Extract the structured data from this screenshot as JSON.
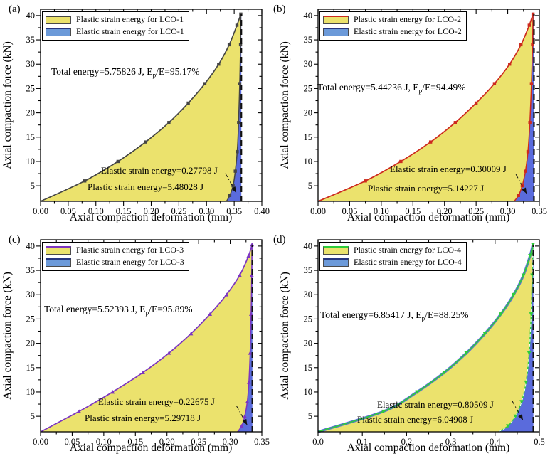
{
  "figure": {
    "x_axis_label": "Axial compaction deformation (mm)",
    "y_axis_label": "Axial compaction force (kN)"
  },
  "chart_data": [
    {
      "type": "area",
      "panel_label": "(a)",
      "sample": "LCO-1",
      "legend": [
        "Plastic strain energy for LCO-1",
        "Elastic strain energy for LCO-1"
      ],
      "annotations": {
        "total": {
          "prefix": "Total energy=5.75826 J, E",
          "sub": "p",
          "suffix": "/E=95.17%"
        },
        "elastic": "Elastic strain energy=0.27798 J",
        "plastic": "Plastic strain energy=5.48028 J"
      },
      "total_energy_J": 5.75826,
      "ep_over_e_percent": 95.17,
      "elastic_energy_J": 0.27798,
      "plastic_energy_J": 5.48028,
      "xlabel": "Axial compaction deformation (mm)",
      "ylabel": "Axial compaction force (kN)",
      "xlim": [
        0,
        0.4
      ],
      "ylim": [
        1.8,
        41.3
      ],
      "xticks": [
        0,
        0.05,
        0.1,
        0.15,
        0.2,
        0.25,
        0.3,
        0.35,
        0.4
      ],
      "x_tick_labels": [
        "0.00",
        "0.05",
        "0.10",
        "0.15",
        "0.20",
        "0.25",
        "0.30",
        "0.35",
        "0.40"
      ],
      "yticks": [
        5,
        10,
        15,
        20,
        25,
        30,
        35,
        40
      ],
      "y_tick_labels": [
        "5",
        "10",
        "15",
        "20",
        "25",
        "30",
        "35",
        "40"
      ],
      "curve_color": "#454545",
      "marker": "square",
      "plastic_fill": "#ebe26d",
      "elastic_fill": "#5a6bdc",
      "legend_elastic_fill": "#6c9ad9",
      "loading_curve": {
        "x": [
          0.0,
          0.08,
          0.14,
          0.19,
          0.232,
          0.267,
          0.297,
          0.322,
          0.341,
          0.355,
          0.362
        ],
        "force_kN": [
          1.8,
          6,
          10,
          14,
          18,
          22,
          26,
          30,
          34,
          38,
          40.3
        ]
      },
      "unloading_curve": {
        "x": [
          0.362,
          0.3615,
          0.36,
          0.358,
          0.3555,
          0.352,
          0.348,
          0.342,
          0.336
        ],
        "force_kN": [
          40.3,
          34,
          26,
          18,
          12,
          8,
          5,
          3,
          1.8
        ]
      },
      "unload_dash_x": 0.363,
      "arrow_tip_force": 3.6,
      "loading_blue_edge": false,
      "unload_overlay_dash": false
    },
    {
      "type": "area",
      "panel_label": "(b)",
      "sample": "LCO-2",
      "legend": [
        "Plastic strain energy for LCO-2",
        "Elastic strain energy for LCO-2"
      ],
      "annotations": {
        "total": {
          "prefix": "Total energy=5.44236 J, E",
          "sub": "p",
          "suffix": "/E=94.49%"
        },
        "elastic": "Elastic strain energy=0.30009 J",
        "plastic": "Plastic strain energy=5.14227 J"
      },
      "total_energy_J": 5.44236,
      "ep_over_e_percent": 94.49,
      "elastic_energy_J": 0.30009,
      "plastic_energy_J": 5.14227,
      "xlabel": "Axial compaction deformation (mm)",
      "ylabel": "Axial compaction force (kN)",
      "xlim": [
        0,
        0.35
      ],
      "ylim": [
        1.8,
        41.3
      ],
      "xticks": [
        0,
        0.05,
        0.1,
        0.15,
        0.2,
        0.25,
        0.3,
        0.35
      ],
      "x_tick_labels": [
        "0.00",
        "0.05",
        "0.10",
        "0.15",
        "0.20",
        "0.25",
        "0.30",
        "0.35"
      ],
      "yticks": [
        5,
        10,
        15,
        20,
        25,
        30,
        35,
        40
      ],
      "y_tick_labels": [
        "5",
        "10",
        "15",
        "20",
        "25",
        "30",
        "35",
        "40"
      ],
      "curve_color": "#cd2a1e",
      "marker": "square",
      "plastic_fill": "#ebe26d",
      "elastic_fill": "#5a6bdc",
      "legend_elastic_fill": "#6c9ad9",
      "loading_curve": {
        "x": [
          0.0,
          0.075,
          0.131,
          0.178,
          0.217,
          0.25,
          0.279,
          0.303,
          0.321,
          0.334,
          0.34
        ],
        "force_kN": [
          1.8,
          6,
          10,
          14,
          18,
          22,
          26,
          30,
          34,
          38,
          40.3
        ]
      },
      "unloading_curve": {
        "x": [
          0.34,
          0.3393,
          0.3375,
          0.335,
          0.332,
          0.328,
          0.323,
          0.317,
          0.31
        ],
        "force_kN": [
          40.3,
          34,
          26,
          18,
          12,
          8,
          5,
          3,
          1.8
        ]
      },
      "unload_dash_x": 0.3415,
      "arrow_tip_force": 3.4,
      "loading_blue_edge": false,
      "unload_overlay_dash": false
    },
    {
      "type": "area",
      "panel_label": "(c)",
      "sample": "LCO-3",
      "legend": [
        "Plastic strain energy for LCO-3",
        "Elastic strain energy for LCO-3"
      ],
      "annotations": {
        "total": {
          "prefix": "Total energy=5.52393 J, E",
          "sub": "p",
          "suffix": "/E=95.89%"
        },
        "elastic": "Elastic strain energy=0.22675 J",
        "plastic": "Plastic strain energy=5.29718 J"
      },
      "total_energy_J": 5.52393,
      "ep_over_e_percent": 95.89,
      "elastic_energy_J": 0.22675,
      "plastic_energy_J": 5.29718,
      "xlabel": "Axial compaction deformation (mm)",
      "ylabel": "Axial compaction force (kN)",
      "xlim": [
        0,
        0.35
      ],
      "ylim": [
        1.8,
        41.3
      ],
      "xticks": [
        0,
        0.05,
        0.1,
        0.15,
        0.2,
        0.25,
        0.3,
        0.35
      ],
      "x_tick_labels": [
        "0.00",
        "0.05",
        "0.10",
        "0.15",
        "0.20",
        "0.25",
        "0.30",
        "0.35"
      ],
      "yticks": [
        5,
        10,
        15,
        20,
        25,
        30,
        35,
        40
      ],
      "y_tick_labels": [
        "5",
        "10",
        "15",
        "20",
        "25",
        "30",
        "35",
        "40"
      ],
      "curve_color": "#7c35c1",
      "marker": "triangle-up",
      "plastic_fill": "#ebe26d",
      "elastic_fill": "#5a6bdc",
      "legend_elastic_fill": "#6c9ad9",
      "loading_curve": {
        "x": [
          0.0,
          0.061,
          0.114,
          0.162,
          0.203,
          0.238,
          0.268,
          0.294,
          0.315,
          0.329,
          0.3345
        ],
        "force_kN": [
          1.8,
          6,
          10,
          14,
          18,
          22,
          26,
          30,
          34,
          38,
          40.3
        ]
      },
      "unloading_curve": {
        "x": [
          0.3345,
          0.334,
          0.333,
          0.3315,
          0.3295,
          0.327,
          0.323,
          0.318,
          0.3115
        ],
        "force_kN": [
          40.3,
          34,
          26,
          18,
          12,
          8,
          5,
          3,
          1.8
        ]
      },
      "unload_dash_x": 0.335,
      "arrow_tip_force": 3.2,
      "loading_blue_edge": false,
      "unload_overlay_dash": false
    },
    {
      "type": "area",
      "panel_label": "(d)",
      "sample": "LCO-4",
      "legend": [
        "Plastic strain energy for LCO-4",
        "Elastic strain energy for LCO-4"
      ],
      "annotations": {
        "total": {
          "prefix": "Total energy=6.85417 J, E",
          "sub": "p",
          "suffix": "/E=88.25%"
        },
        "elastic": "Elastic strain energy=0.80509 J",
        "plastic": "Plastic strain energy=6.04908 J"
      },
      "total_energy_J": 6.85417,
      "ep_over_e_percent": 88.25,
      "elastic_energy_J": 0.80509,
      "plastic_energy_J": 6.04908,
      "xlabel": "Axial compaction deformation (mm)",
      "ylabel": "Axial compaction force (kN)",
      "xlim": [
        0,
        0.5
      ],
      "ylim": [
        1.8,
        41.3
      ],
      "xticks": [
        0,
        0.1,
        0.2,
        0.3,
        0.4,
        0.5
      ],
      "x_tick_labels": [
        "0.0",
        "0.1",
        "0.2",
        "0.3",
        "0.4",
        "0.5"
      ],
      "yticks": [
        5,
        10,
        15,
        20,
        25,
        30,
        35,
        40
      ],
      "y_tick_labels": [
        "5",
        "10",
        "15",
        "20",
        "25",
        "30",
        "35",
        "40"
      ],
      "curve_color": "#2ecc3b",
      "marker": "triangle-down",
      "plastic_fill": "#ebe26d",
      "elastic_fill": "#5a6bdc",
      "legend_elastic_fill": "#6c9ad9",
      "loading_curve": {
        "x": [
          0.0,
          0.148,
          0.224,
          0.285,
          0.335,
          0.377,
          0.413,
          0.442,
          0.464,
          0.479,
          0.4855
        ],
        "force_kN": [
          1.8,
          6,
          10,
          14,
          18,
          22,
          26,
          30,
          34,
          38,
          40.3
        ]
      },
      "unloading_curve": {
        "x": [
          0.4855,
          0.484,
          0.4815,
          0.477,
          0.47,
          0.46,
          0.446,
          0.429,
          0.408
        ],
        "force_kN": [
          40.3,
          34,
          26,
          18,
          12,
          8,
          5,
          3,
          1.8
        ]
      },
      "unload_dash_x": 0.4865,
      "arrow_tip_force": 4.2,
      "loading_blue_edge": true,
      "unload_overlay_dash": true
    }
  ]
}
